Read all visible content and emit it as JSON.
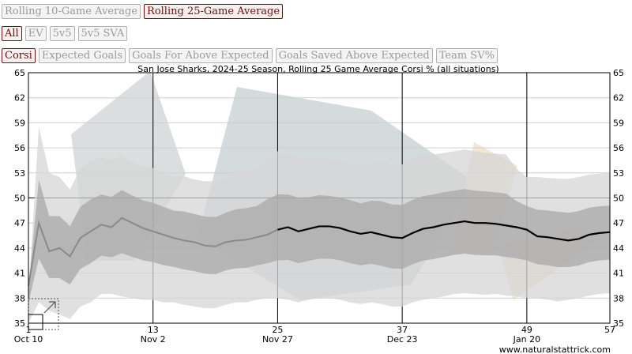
{
  "controls": {
    "window": [
      {
        "label": "Rolling 10-Game Average",
        "active": false
      },
      {
        "label": "Rolling 25-Game Average",
        "active": true
      }
    ],
    "situation": [
      {
        "label": "All",
        "active": true
      },
      {
        "label": "EV",
        "active": false
      },
      {
        "label": "5v5",
        "active": false
      },
      {
        "label": "5v5 SVA",
        "active": false
      }
    ],
    "metric": [
      {
        "label": "Corsi",
        "active": true
      },
      {
        "label": "Expected Goals",
        "active": false
      },
      {
        "label": "Goals For Above Expected",
        "active": false
      },
      {
        "label": "Goals Saved Above Expected",
        "active": false
      },
      {
        "label": "Team SV%",
        "active": false
      }
    ]
  },
  "credit": "www.naturalstattrick.com",
  "chart_data": {
    "type": "line",
    "title": "San Jose Sharks, 2024-25 Season, Rolling 25 Game Average Corsi % (all situations)",
    "xlim": [
      1,
      57
    ],
    "ylim": [
      35,
      65
    ],
    "yticks": [
      35,
      38,
      41,
      44,
      47,
      50,
      53,
      56,
      59,
      62,
      65
    ],
    "game_ticks": [
      1,
      13,
      25,
      37,
      49,
      57
    ],
    "date_labels": [
      {
        "game": 1,
        "label": "Oct 10"
      },
      {
        "game": 13,
        "label": "Nov 2"
      },
      {
        "game": 25,
        "label": "Nov 27"
      },
      {
        "game": 37,
        "label": "Dec 23"
      },
      {
        "game": 49,
        "label": "Jan 20"
      }
    ],
    "reference_line": 50,
    "grid": true,
    "line_color_partial": "#8a8a8a",
    "line_color_full": "#000000",
    "band_color_outer": "#d6d6d6",
    "band_color_inner": "#a8a8a8",
    "series": [
      {
        "x": [
          1,
          2,
          3,
          4,
          5,
          6,
          7,
          8,
          9,
          10,
          11,
          12,
          13,
          14,
          15,
          16,
          17,
          18,
          19,
          20,
          21,
          22,
          23,
          24,
          25,
          26,
          27,
          28,
          29,
          30,
          31,
          32,
          33,
          34,
          35,
          36,
          37,
          38,
          39,
          40,
          41,
          42,
          43,
          44,
          45,
          46,
          47,
          48,
          49,
          50,
          51,
          52,
          53,
          54,
          55,
          56,
          57
        ],
        "values": [
          39.5,
          47.0,
          43.6,
          44.0,
          43.0,
          45.2,
          46.0,
          46.8,
          46.5,
          47.6,
          47.0,
          46.4,
          46.0,
          45.6,
          45.2,
          44.9,
          44.7,
          44.3,
          44.2,
          44.7,
          44.9,
          45.0,
          45.3,
          45.6,
          46.2,
          46.5,
          46.0,
          46.3,
          46.6,
          46.6,
          46.4,
          46.0,
          45.7,
          45.9,
          45.6,
          45.3,
          45.2,
          45.8,
          46.3,
          46.5,
          46.8,
          47.0,
          47.2,
          47.0,
          47.0,
          46.9,
          46.7,
          46.5,
          46.2,
          45.4,
          45.3,
          45.1,
          44.9,
          45.1,
          45.6,
          45.8,
          45.9
        ]
      },
      {
        "x": [
          1,
          2,
          3,
          4,
          5,
          6,
          7,
          8,
          9,
          10,
          11,
          12,
          13,
          14,
          15,
          16,
          17,
          18,
          19,
          20,
          21,
          22,
          23,
          24,
          25,
          26,
          27,
          28,
          29,
          30,
          31,
          32,
          33,
          34,
          35,
          36,
          37,
          38,
          39,
          40,
          41,
          42,
          43,
          44,
          45,
          46,
          47,
          48,
          49,
          50,
          51,
          52,
          53,
          54,
          55,
          56,
          57
        ],
        "values": [
          38.5,
          58.5,
          53.0,
          52.5,
          51.0,
          53.5,
          54.5,
          54.8,
          54.6,
          55.0,
          54.3,
          53.8,
          53.6,
          53.0,
          52.5,
          52.6,
          52.2,
          52.0,
          52.0,
          52.5,
          53.2,
          53.4,
          53.6,
          55.0,
          55.6,
          55.2,
          55.0,
          54.7,
          54.9,
          54.7,
          54.5,
          54.3,
          53.8,
          54.3,
          54.5,
          54.0,
          54.0,
          54.6,
          55.0,
          55.2,
          55.4,
          55.6,
          55.8,
          55.6,
          55.4,
          55.3,
          55.2,
          53.5,
          52.5,
          52.5,
          52.4,
          52.3,
          52.3,
          52.5,
          52.8,
          52.9,
          53.0
        ]
      },
      {
        "x": [
          1,
          2,
          3,
          4,
          5,
          6,
          7,
          8,
          9,
          10,
          11,
          12,
          13,
          14,
          15,
          16,
          17,
          18,
          19,
          20,
          21,
          22,
          23,
          24,
          25,
          26,
          27,
          28,
          29,
          30,
          31,
          32,
          33,
          34,
          35,
          36,
          37,
          38,
          39,
          40,
          41,
          42,
          43,
          44,
          45,
          46,
          47,
          48,
          49,
          50,
          51,
          52,
          53,
          54,
          55,
          56,
          57
        ],
        "values": [
          35.0,
          37.5,
          36.5,
          36.0,
          35.5,
          37.0,
          37.5,
          38.5,
          38.5,
          38.2,
          38.0,
          37.8,
          37.8,
          37.5,
          37.5,
          37.2,
          37.0,
          36.8,
          36.8,
          37.2,
          37.5,
          37.5,
          37.8,
          38.0,
          38.0,
          37.8,
          37.5,
          37.8,
          38.0,
          38.0,
          37.8,
          37.5,
          37.3,
          37.5,
          37.3,
          37.0,
          37.0,
          37.5,
          37.8,
          38.0,
          38.2,
          38.5,
          38.6,
          38.5,
          38.4,
          38.5,
          38.3,
          38.2,
          38.0,
          38.0,
          37.8,
          37.6,
          37.8,
          38.0,
          38.3,
          38.5,
          38.6
        ]
      }
    ]
  }
}
